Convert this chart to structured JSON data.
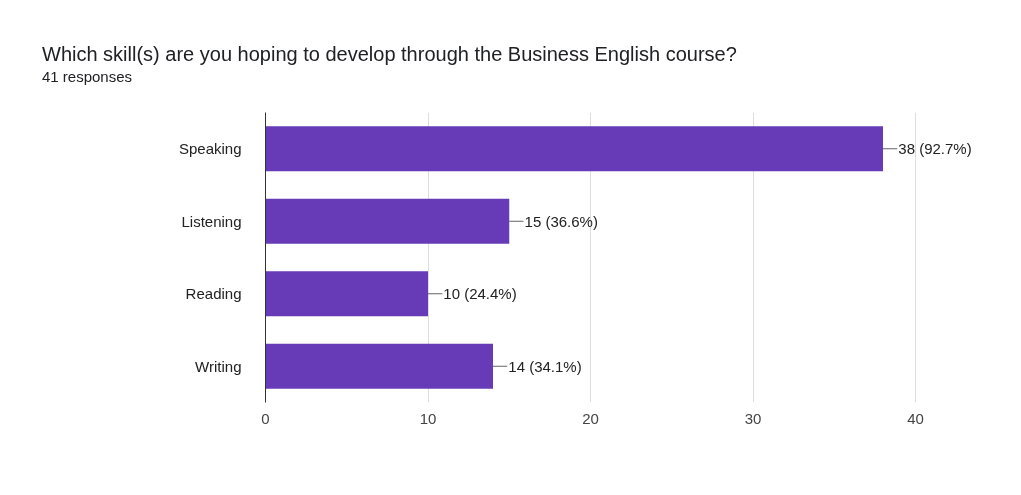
{
  "chart_data": {
    "type": "bar",
    "orientation": "horizontal",
    "title": "Which skill(s) are you hoping to develop through the Business English course?",
    "subtitle": "41 responses",
    "categories": [
      "Speaking",
      "Listening",
      "Reading",
      "Writing"
    ],
    "values": [
      38,
      15,
      10,
      14
    ],
    "value_labels": [
      "38 (92.7%)",
      "15 (36.6%)",
      "10 (24.4%)",
      "14 (34.1%)"
    ],
    "color": "#673ab7",
    "xlim": [
      0,
      40
    ],
    "xticks": [
      0,
      10,
      20,
      30,
      40
    ],
    "grid": "x"
  }
}
